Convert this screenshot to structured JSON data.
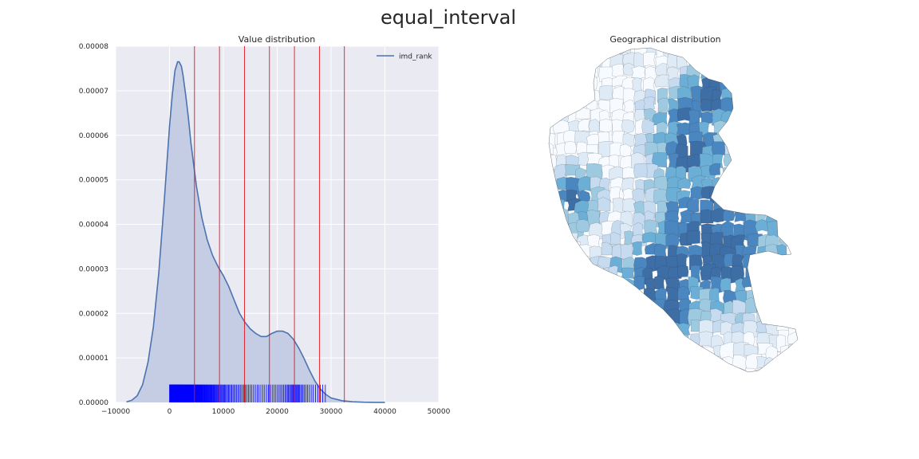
{
  "figure_title": "equal_interval",
  "chart_data": [
    {
      "type": "area",
      "title": "Value distribution",
      "xlabel": "",
      "ylabel": "",
      "xlim": [
        -10000,
        50000
      ],
      "ylim": [
        0,
        8e-05
      ],
      "x_ticks": [
        -10000,
        0,
        10000,
        20000,
        30000,
        40000,
        50000
      ],
      "x_tick_labels": [
        "−10000",
        "0",
        "10000",
        "20000",
        "30000",
        "40000",
        "50000"
      ],
      "y_ticks": [
        0,
        1e-05,
        2e-05,
        3e-05,
        4e-05,
        5e-05,
        6e-05,
        7e-05,
        8e-05
      ],
      "y_tick_labels": [
        "0.00000",
        "0.00001",
        "0.00002",
        "0.00003",
        "0.00004",
        "0.00005",
        "0.00006",
        "0.00007",
        "0.00008"
      ],
      "grid": true,
      "legend_position": "top-right",
      "series": [
        {
          "name": "imd_rank",
          "kind": "kde",
          "color": "#4c72b0",
          "fill": "#c4cde3",
          "x": [
            -8000,
            -7000,
            -6000,
            -5000,
            -4000,
            -3000,
            -2000,
            -1000,
            0,
            500,
            1000,
            1500,
            1800,
            2200,
            2500,
            3000,
            3500,
            4000,
            5000,
            6000,
            7000,
            8000,
            9000,
            10000,
            11000,
            12000,
            13000,
            14000,
            15000,
            16000,
            17000,
            18000,
            19000,
            20000,
            21000,
            22000,
            23000,
            24000,
            25000,
            26000,
            27000,
            28000,
            29000,
            30000,
            32000,
            34000,
            36000,
            38000,
            40000
          ],
          "y": [
            1e-07,
            5e-07,
            1.5e-06,
            4e-06,
            9e-06,
            1.7e-05,
            2.9e-05,
            4.5e-05,
            6.2e-05,
            6.9e-05,
            7.45e-05,
            7.65e-05,
            7.65e-05,
            7.55e-05,
            7.35e-05,
            6.9e-05,
            6.4e-05,
            5.8e-05,
            4.85e-05,
            4.15e-05,
            3.65e-05,
            3.3e-05,
            3.05e-05,
            2.85e-05,
            2.6e-05,
            2.3e-05,
            2e-05,
            1.8e-05,
            1.65e-05,
            1.55e-05,
            1.48e-05,
            1.48e-05,
            1.55e-05,
            1.6e-05,
            1.6e-05,
            1.55e-05,
            1.42e-05,
            1.22e-05,
            9.8e-06,
            7.2e-06,
            4.8e-06,
            3e-06,
            1.8e-06,
            1e-06,
            4e-07,
            1.5e-07,
            5e-08,
            2e-08,
            1e-08
          ]
        }
      ],
      "class_breaks": [
        4637,
        9277,
        13917,
        18557,
        23197,
        27837,
        32477
      ],
      "class_break_color": "#e8141d",
      "rug_color": "#0000ff",
      "rug_height": 4e-06,
      "rug": [
        18,
        34,
        62,
        95,
        120,
        154,
        188,
        201,
        236,
        270,
        305,
        318,
        342,
        377,
        404,
        433,
        461,
        490,
        512,
        547,
        580,
        606,
        633,
        667,
        690,
        718,
        752,
        779,
        803,
        836,
        861,
        894,
        921,
        948,
        972,
        1004,
        1033,
        1060,
        1088,
        1113,
        1145,
        1170,
        1202,
        1229,
        1255,
        1281,
        1312,
        1340,
        1366,
        1398,
        1422,
        1455,
        1480,
        1507,
        1536,
        1563,
        1590,
        1618,
        1645,
        1673,
        1700,
        1728,
        1756,
        1783,
        1811,
        1838,
        1866,
        1893,
        1921,
        1948,
        1976,
        2003,
        2031,
        2058,
        2086,
        2113,
        2141,
        2168,
        2196,
        2223,
        2260,
        2302,
        2341,
        2388,
        2429,
        2470,
        2512,
        2556,
        2601,
        2645,
        2690,
        2736,
        2781,
        2827,
        2874,
        2921,
        2968,
        3016,
        3064,
        3112,
        3161,
        3210,
        3260,
        3310,
        3361,
        3412,
        3463,
        3515,
        3568,
        3620,
        3674,
        3728,
        3783,
        3838,
        3894,
        3950,
        4007,
        4064,
        4122,
        4181,
        4240,
        4300,
        4360,
        4421,
        4483,
        4545,
        4609,
        4672,
        4737,
        4802,
        4868,
        4935,
        5002,
        5071,
        5140,
        5210,
        5281,
        5353,
        5426,
        5500,
        5575,
        5651,
        5728,
        5806,
        5885,
        5966,
        6047,
        6130,
        6214,
        6299,
        6386,
        6474,
        6563,
        6654,
        6746,
        6840,
        6935,
        7032,
        7131,
        7231,
        7334,
        7438,
        7544,
        7652,
        7762,
        7874,
        7988,
        8105,
        8224,
        8346,
        8470,
        8597,
        8727,
        8860,
        8996,
        9136,
        9279,
        9426,
        9577,
        9732,
        9892,
        10056,
        10225,
        10399,
        10579,
        10764,
        10955,
        11152,
        11356,
        11566,
        11782,
        12006,
        12236,
        12474,
        12719,
        12972,
        13232,
        13501,
        13777,
        14062,
        14355,
        14656,
        14965,
        15282,
        15606,
        15938,
        16276,
        16620,
        16968,
        17320,
        17674,
        18028,
        18381,
        18730,
        19074,
        19411,
        19739,
        20056,
        20361,
        20652,
        20929,
        21191,
        21438,
        21670,
        21887,
        22090,
        22280,
        22458,
        22626,
        22785,
        22937,
        23084,
        23228,
        23372,
        23518,
        23669,
        23826,
        23993,
        24172,
        24366,
        24577,
        24807,
        25059,
        25334,
        25634,
        25960,
        26313,
        26693,
        27099,
        27529,
        27982,
        28453,
        28936
      ]
    },
    {
      "type": "map",
      "title": "Geographical distribution",
      "palette": [
        "#f7fbff",
        "#deebf7",
        "#c6dbef",
        "#9ecae1",
        "#6baed6",
        "#4a86c0",
        "#3d6ea6"
      ],
      "edge_color": "#3a3a3a"
    }
  ]
}
